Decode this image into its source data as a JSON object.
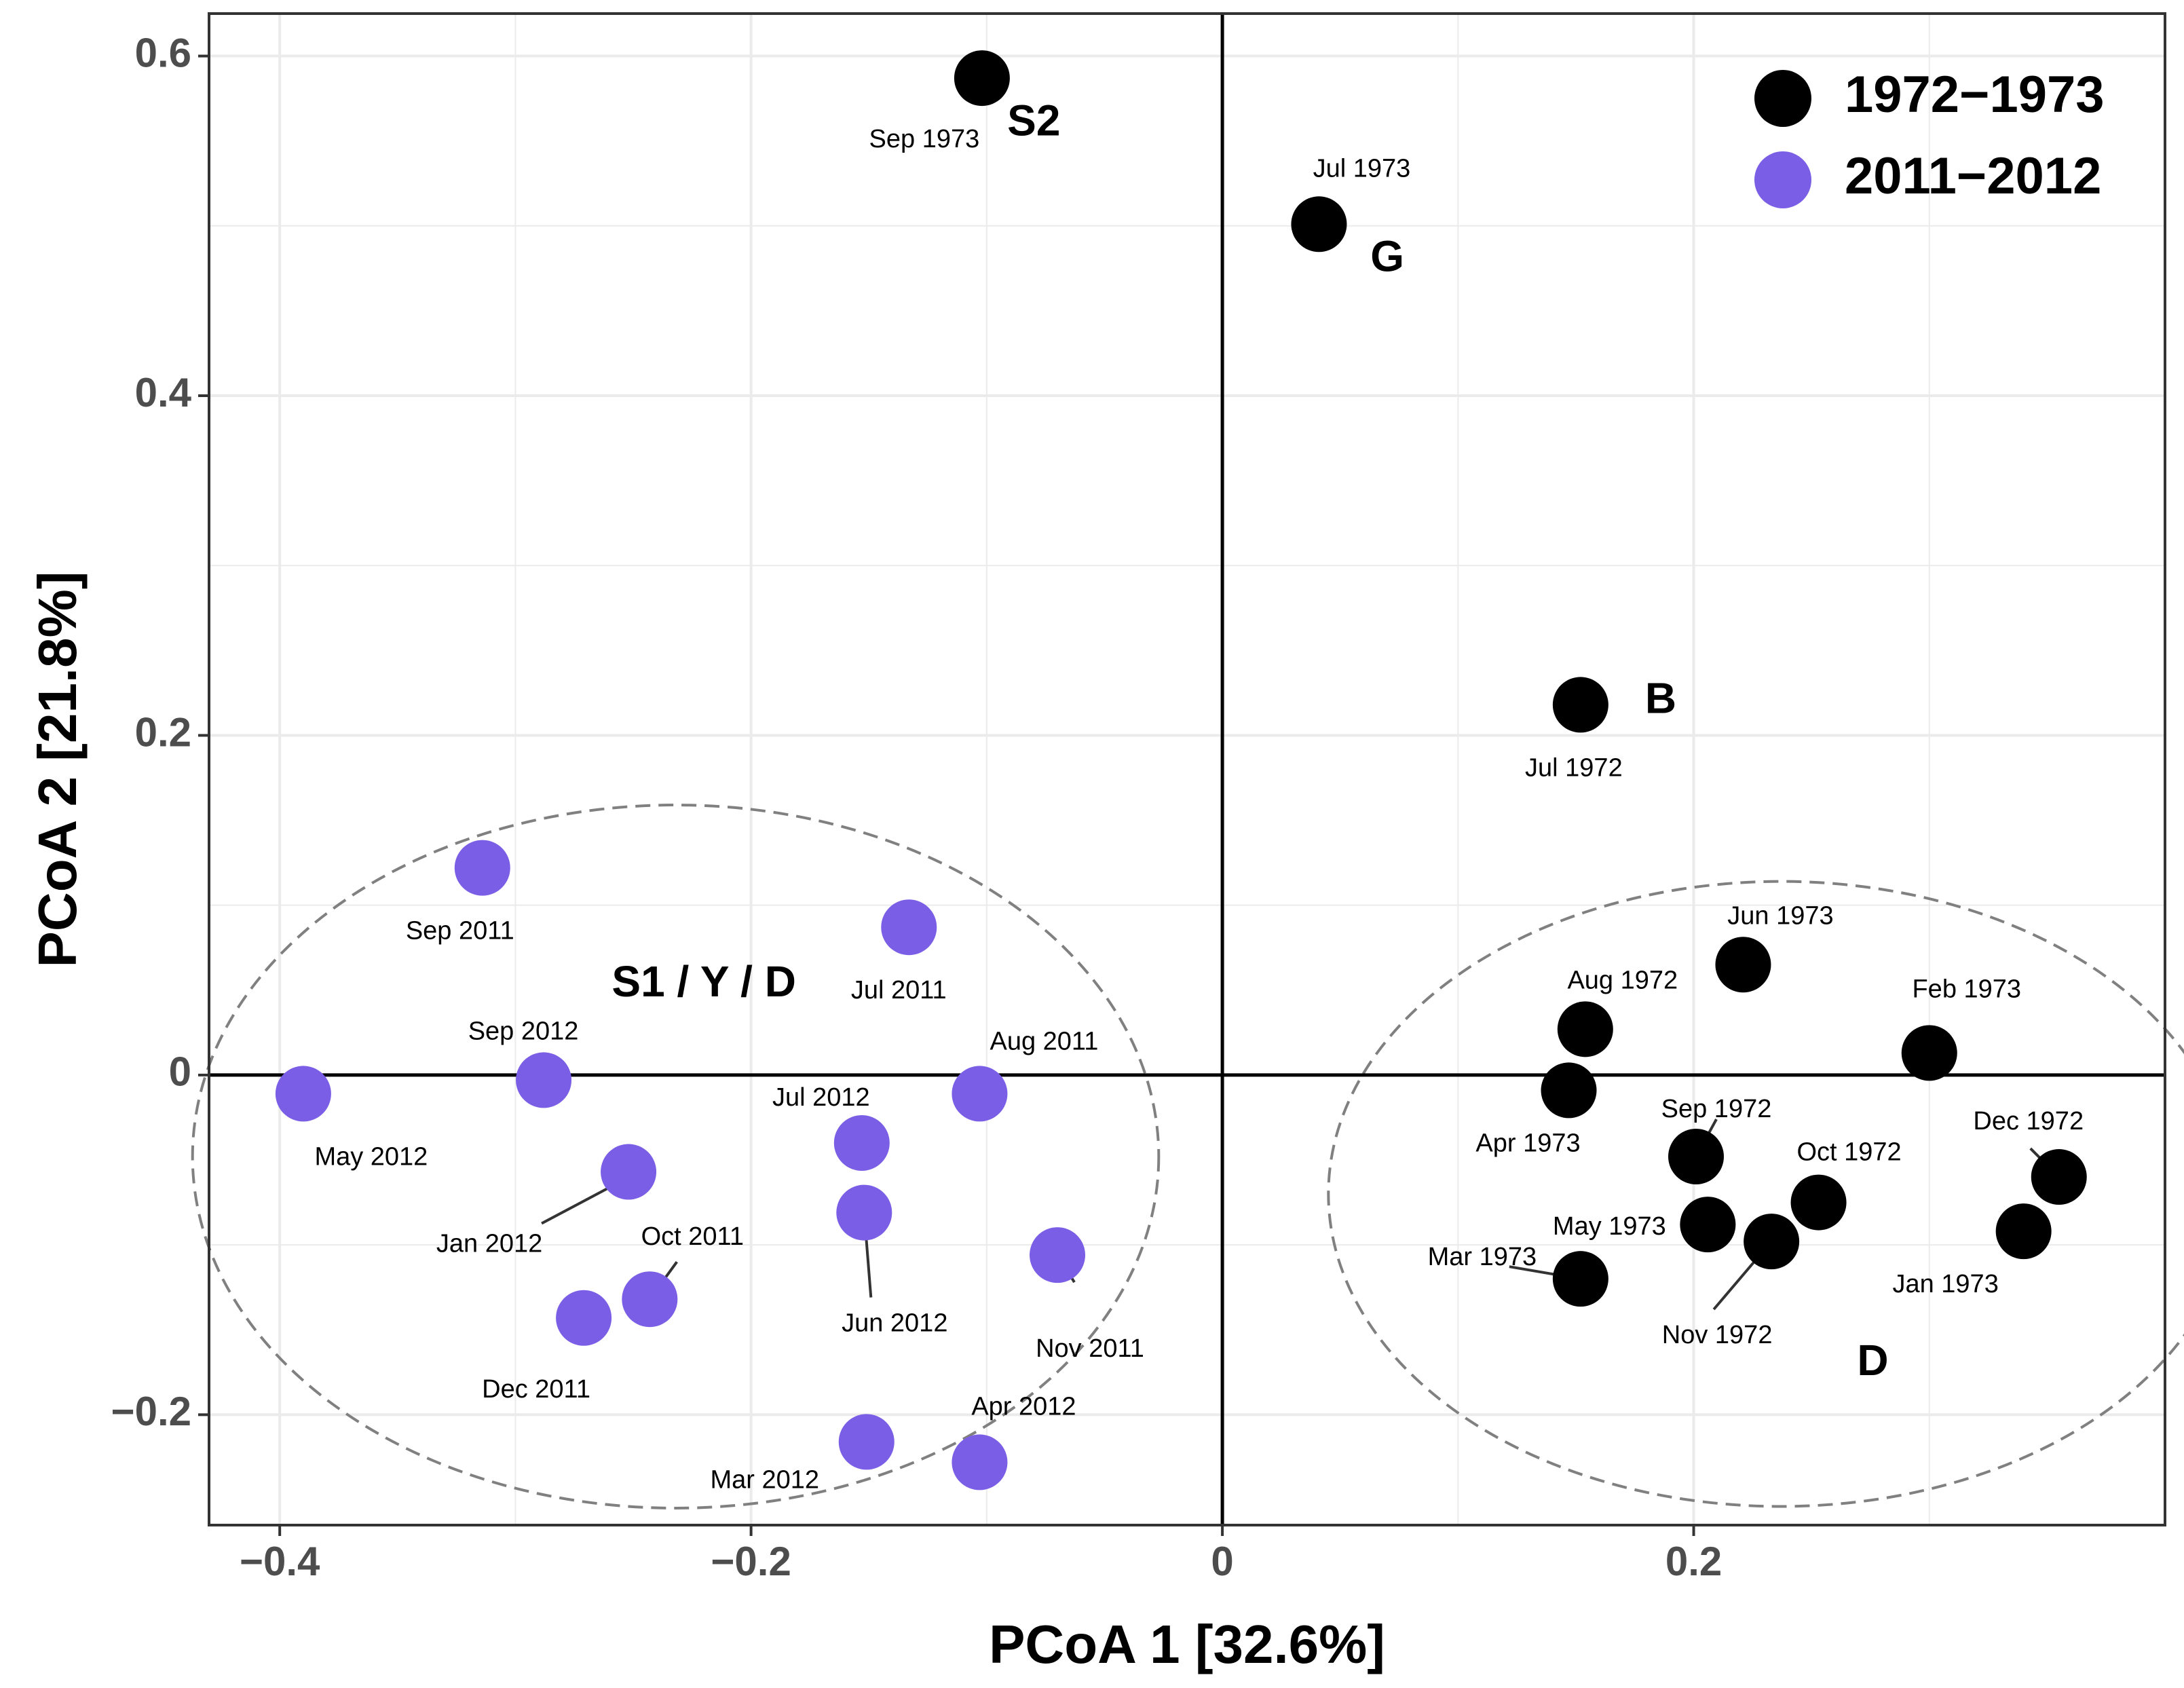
{
  "chart_data": {
    "type": "scatter",
    "xlabel": "PCoA 1 [32.6%]",
    "ylabel": "PCoA 2 [21.8%]",
    "xlim": [
      -0.43,
      0.4
    ],
    "ylim": [
      -0.265,
      0.625
    ],
    "xticks": [
      -0.4,
      -0.2,
      0,
      0.2
    ],
    "xtick_labels": [
      "−0.4",
      "−0.2",
      "0",
      "0.2"
    ],
    "yticks": [
      -0.2,
      0,
      0.2,
      0.4,
      0.6
    ],
    "ytick_labels": [
      "−0.2",
      "0",
      "0.2",
      "0.4",
      "0.6"
    ],
    "grid": true,
    "legend_position": "top-right",
    "series": [
      {
        "name": "1972−1973",
        "color": "#000000",
        "points": [
          {
            "label": "Sep 1973",
            "x": -0.102,
            "y": 0.587
          },
          {
            "label": "Jul 1973",
            "x": 0.041,
            "y": 0.501
          },
          {
            "label": "Jul 1972",
            "x": 0.152,
            "y": 0.218
          },
          {
            "label": "Jun 1973",
            "x": 0.221,
            "y": 0.065
          },
          {
            "label": "Aug 1972",
            "x": 0.154,
            "y": 0.027
          },
          {
            "label": "Feb 1973",
            "x": 0.3,
            "y": 0.013
          },
          {
            "label": "Apr 1973",
            "x": 0.147,
            "y": -0.009
          },
          {
            "label": "Sep 1972",
            "x": 0.201,
            "y": -0.048
          },
          {
            "label": "Dec 1972",
            "x": 0.355,
            "y": -0.06
          },
          {
            "label": "Oct 1972",
            "x": 0.253,
            "y": -0.075
          },
          {
            "label": "May 1973",
            "x": 0.206,
            "y": -0.088
          },
          {
            "label": "Nov 1972",
            "x": 0.233,
            "y": -0.098
          },
          {
            "label": "Jan 1973",
            "x": 0.34,
            "y": -0.092
          },
          {
            "label": "Mar 1973",
            "x": 0.152,
            "y": -0.12
          }
        ]
      },
      {
        "name": "2011−2012",
        "color": "#7b5ee6",
        "points": [
          {
            "label": "Sep 2011",
            "x": -0.314,
            "y": 0.122
          },
          {
            "label": "Jul 2011",
            "x": -0.133,
            "y": 0.087
          },
          {
            "label": "Sep 2012",
            "x": -0.288,
            "y": -0.003
          },
          {
            "label": "May 2012",
            "x": -0.39,
            "y": -0.011
          },
          {
            "label": "Aug 2011",
            "x": -0.103,
            "y": -0.011
          },
          {
            "label": "Jul 2012",
            "x": -0.153,
            "y": -0.04
          },
          {
            "label": "Jan 2012",
            "x": -0.252,
            "y": -0.057
          },
          {
            "label": "Jun 2012",
            "x": -0.152,
            "y": -0.081
          },
          {
            "label": "Nov 2011",
            "x": -0.07,
            "y": -0.106
          },
          {
            "label": "Oct 2011",
            "x": -0.243,
            "y": -0.132
          },
          {
            "label": "Dec 2011",
            "x": -0.271,
            "y": -0.143
          },
          {
            "label": "Mar 2012",
            "x": -0.151,
            "y": -0.216
          },
          {
            "label": "Apr 2012",
            "x": -0.103,
            "y": -0.228
          }
        ]
      }
    ],
    "group_labels": [
      {
        "text": "S2",
        "x": -0.08,
        "y": 0.56
      },
      {
        "text": "G",
        "x": 0.07,
        "y": 0.48
      },
      {
        "text": "B",
        "x": 0.186,
        "y": 0.22
      },
      {
        "text": "S1 / Y / D",
        "x": -0.22,
        "y": 0.053
      },
      {
        "text": "D",
        "x": 0.276,
        "y": -0.17
      }
    ],
    "ellipses": [
      {
        "name": "S1 / Y / D",
        "cx": -0.232,
        "cy": -0.048,
        "rx": 0.205,
        "ry": 0.207
      },
      {
        "name": "D",
        "cx": 0.237,
        "cy": -0.07,
        "rx": 0.192,
        "ry": 0.184
      }
    ]
  }
}
